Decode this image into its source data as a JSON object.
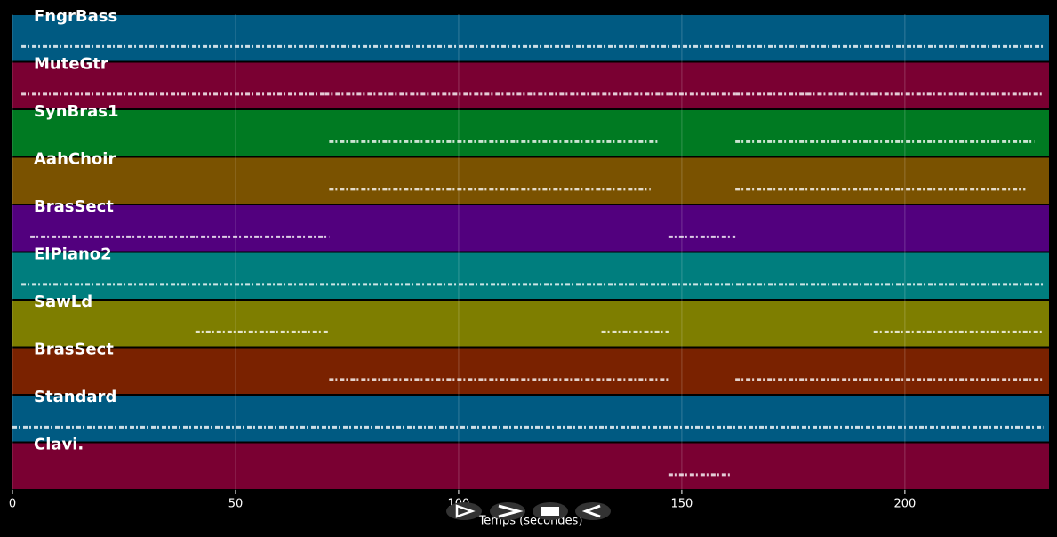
{
  "chart_data": {
    "type": "timeline",
    "x_label": "Temps (secondes)",
    "xlim": [
      0,
      232.3
    ],
    "xticks": [
      0,
      50,
      100,
      150,
      200
    ],
    "grid": true,
    "series": [
      {
        "name": "FngrBass",
        "color": "#005a82",
        "segments": [
          [
            2,
            231
          ]
        ]
      },
      {
        "name": "MuteGtr",
        "color": "#7a0032",
        "segments": [
          [
            2,
            70
          ],
          [
            70,
            147
          ],
          [
            147,
            162
          ],
          [
            162,
            178
          ],
          [
            178,
            193
          ],
          [
            193,
            231
          ]
        ]
      },
      {
        "name": "SynBras1",
        "color": "#007a22",
        "segments": [
          [
            71,
            145
          ],
          [
            162,
            229
          ]
        ]
      },
      {
        "name": "AahChoir",
        "color": "#7a5200",
        "segments": [
          [
            71,
            143
          ],
          [
            162,
            227
          ]
        ]
      },
      {
        "name": "BrasSect",
        "color": "#52007e",
        "segments": [
          [
            4,
            71
          ],
          [
            147,
            162
          ]
        ]
      },
      {
        "name": "ElPiano2",
        "color": "#007e7e",
        "segments": [
          [
            2,
            231
          ]
        ]
      },
      {
        "name": "SawLd",
        "color": "#7e7e00",
        "segments": [
          [
            41,
            71
          ],
          [
            132,
            147
          ],
          [
            193,
            231
          ]
        ]
      },
      {
        "name": "BrasSect",
        "color": "#7a2200",
        "segments": [
          [
            71,
            147
          ],
          [
            162,
            231
          ]
        ]
      },
      {
        "name": "Standard",
        "color": "#005a82",
        "segments": [
          [
            0,
            231
          ]
        ]
      },
      {
        "name": "Clavi.",
        "color": "#7a0032",
        "segments": [
          [
            147,
            161
          ]
        ]
      }
    ]
  }
}
